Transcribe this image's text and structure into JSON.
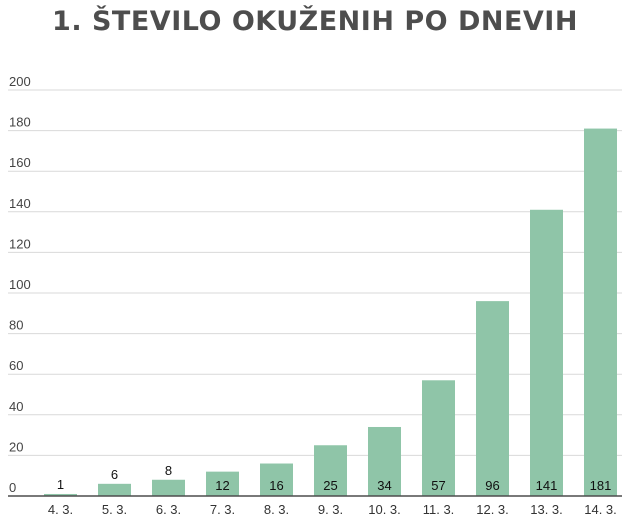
{
  "chart_data": {
    "type": "bar",
    "title": "1. ŠTEVILO OKUŽENIH PO DNEVIH",
    "categories": [
      "4. 3.",
      "5. 3.",
      "6. 3.",
      "7. 3.",
      "8. 3.",
      "9. 3.",
      "10. 3.",
      "11. 3.",
      "12. 3.",
      "13. 3.",
      "14. 3."
    ],
    "values": [
      1,
      6,
      8,
      12,
      16,
      25,
      34,
      57,
      96,
      141,
      181
    ],
    "ylim": [
      0,
      200
    ],
    "yticks": [
      0,
      20,
      40,
      60,
      80,
      100,
      120,
      140,
      160,
      180,
      200
    ],
    "grid": true,
    "colors": {
      "bar": "#8fc5a8",
      "grid": "#d9d9d9",
      "axis": "#4d4d4d"
    }
  }
}
